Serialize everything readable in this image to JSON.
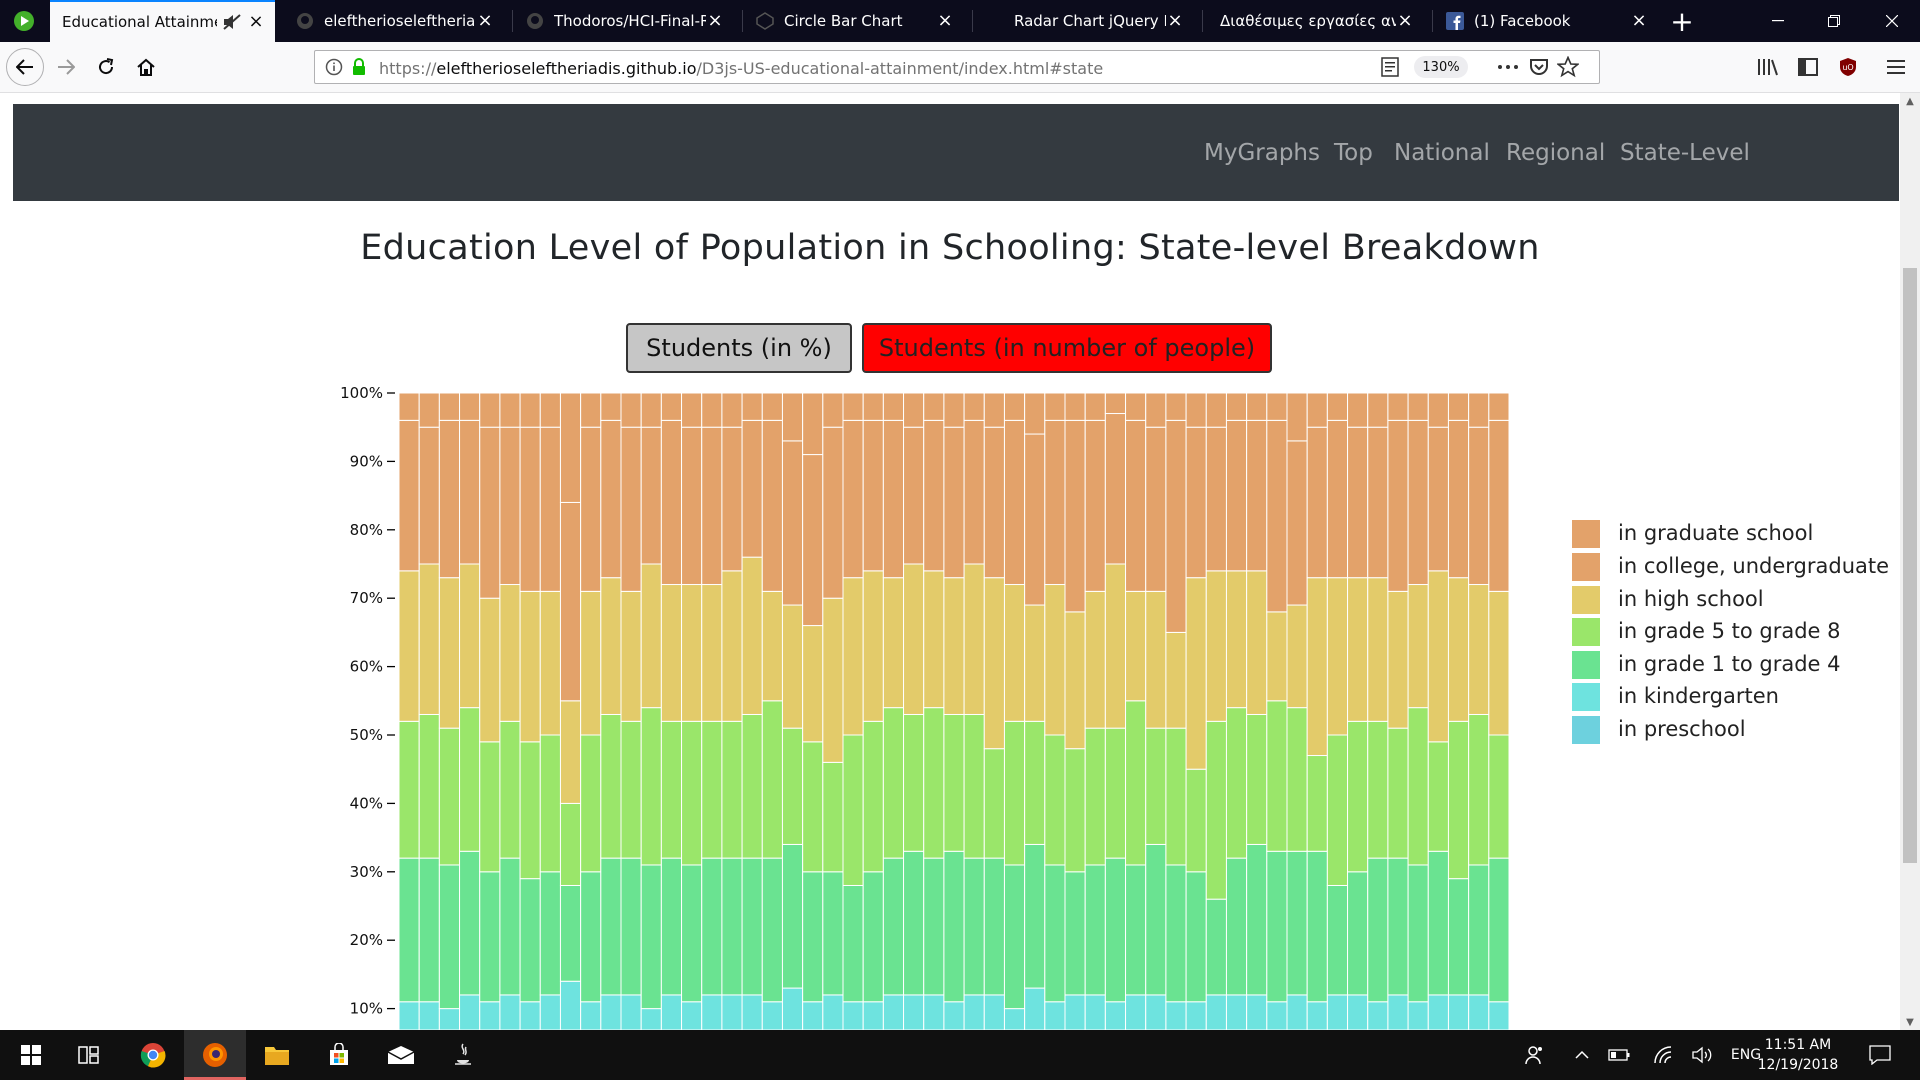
{
  "browser": {
    "tabs": [
      {
        "title": "Educational Attainment",
        "icon": "sound-muted-icon",
        "active": true
      },
      {
        "title": "eleftherioseleftheriadis",
        "icon": "github-icon",
        "active": false
      },
      {
        "title": "Thodoros/HCI-Final-Re",
        "icon": "github-icon",
        "active": false
      },
      {
        "title": "Circle Bar Chart",
        "icon": "codepen-icon",
        "active": false
      },
      {
        "title": "Radar Chart jQuery Plug",
        "icon": "page-icon",
        "active": false
      },
      {
        "title": "Διαθέσιμες εργασίες ανάπ",
        "icon": "page-icon",
        "active": false
      },
      {
        "title": "(1) Facebook",
        "icon": "facebook-icon",
        "active": false
      }
    ],
    "url_scheme": "https://",
    "url_host": "eleftherioseleftheriadis.github.io",
    "url_path": "/D3js-US-educational-attainment/index.html#state",
    "zoom": "130%"
  },
  "page": {
    "nav_links": [
      "MyGraphs",
      "Top",
      "National",
      "Regional",
      "State-Level"
    ],
    "title": "Education Level of Population in Schooling: State-level Breakdown",
    "toggle_percent": "Students (in %)",
    "toggle_count": "Students (in number of people)"
  },
  "chart_data": {
    "type": "bar",
    "stacked": true,
    "normalized": true,
    "y_ticks": [
      "100%",
      "90%",
      "80%",
      "70%",
      "60%",
      "50%",
      "40%",
      "30%",
      "20%",
      "10%"
    ],
    "ylim": [
      0,
      100
    ],
    "legend_position": "right",
    "series": [
      {
        "name": "in preschool",
        "color": "#6dd1de"
      },
      {
        "name": "in kindergarten",
        "color": "#6ee3df"
      },
      {
        "name": "in grade 1 to grade 4",
        "color": "#6ae391"
      },
      {
        "name": "in grade 5 to grade 8",
        "color": "#9ae66a"
      },
      {
        "name": "in high school",
        "color": "#e3cb6a"
      },
      {
        "name": "in college, undergraduate",
        "color": "#e3a26a"
      },
      {
        "name": "in graduate school",
        "color": "#e3a26a"
      }
    ],
    "legend_order": [
      "in graduate school",
      "in college, undergraduate",
      "in high school",
      "in grade 5 to grade 8",
      "in grade 1 to grade 4",
      "in kindergarten",
      "in preschool"
    ],
    "cumulative_top_percent": {
      "kindergarten": [
        11,
        11,
        10,
        12,
        11,
        12,
        11,
        12,
        14,
        11,
        12,
        12,
        10,
        12,
        11,
        12,
        12,
        12,
        11,
        13,
        11,
        12,
        11,
        11,
        12,
        12,
        12,
        11,
        12,
        12,
        10,
        13,
        11,
        12,
        12,
        11,
        12,
        12,
        11,
        11,
        12,
        12,
        12,
        11,
        12,
        11,
        12,
        12,
        11,
        12,
        11,
        12,
        12,
        12,
        11
      ],
      "grade_1_4": [
        32,
        32,
        31,
        33,
        30,
        32,
        29,
        30,
        28,
        30,
        32,
        32,
        31,
        32,
        31,
        32,
        32,
        32,
        32,
        34,
        30,
        30,
        28,
        30,
        32,
        33,
        32,
        33,
        32,
        32,
        31,
        34,
        31,
        30,
        31,
        32,
        31,
        34,
        31,
        30,
        26,
        32,
        34,
        33,
        33,
        33,
        28,
        30,
        32,
        32,
        31,
        33,
        29,
        31,
        32
      ],
      "grade_5_8": [
        52,
        53,
        51,
        54,
        49,
        52,
        49,
        50,
        40,
        50,
        53,
        52,
        54,
        52,
        52,
        52,
        52,
        53,
        55,
        51,
        49,
        46,
        50,
        52,
        54,
        53,
        54,
        53,
        53,
        48,
        52,
        52,
        50,
        48,
        51,
        51,
        55,
        51,
        51,
        45,
        52,
        54,
        53,
        55,
        54,
        47,
        50,
        52,
        52,
        51,
        54,
        49,
        52,
        53,
        50
      ],
      "high_school": [
        74,
        75,
        73,
        75,
        70,
        72,
        71,
        71,
        55,
        71,
        73,
        71,
        75,
        72,
        72,
        72,
        74,
        76,
        71,
        69,
        66,
        70,
        73,
        74,
        73,
        75,
        74,
        73,
        75,
        73,
        72,
        69,
        72,
        68,
        71,
        75,
        71,
        71,
        65,
        73,
        74,
        74,
        74,
        68,
        69,
        73,
        73,
        73,
        73,
        71,
        72,
        74,
        73,
        72,
        71
      ],
      "college_undergraduate": [
        96,
        95,
        96,
        96,
        95,
        95,
        95,
        95,
        84,
        95,
        96,
        95,
        95,
        96,
        95,
        95,
        95,
        96,
        96,
        93,
        91,
        95,
        96,
        96,
        96,
        95,
        96,
        95,
        96,
        95,
        96,
        94,
        96,
        96,
        96,
        97,
        96,
        95,
        96,
        95,
        95,
        96,
        96,
        96,
        93,
        95,
        96,
        95,
        95,
        96,
        96,
        95,
        96,
        95,
        96
      ],
      "graduate_school": [
        100,
        100,
        100,
        100,
        100,
        100,
        100,
        100,
        100,
        100,
        100,
        100,
        100,
        100,
        100,
        100,
        100,
        100,
        100,
        100,
        100,
        100,
        100,
        100,
        100,
        100,
        100,
        100,
        100,
        100,
        100,
        100,
        100,
        100,
        100,
        100,
        100,
        100,
        100,
        100,
        100,
        100,
        100,
        100,
        100,
        100,
        100,
        100,
        100,
        100,
        100,
        100,
        100,
        100,
        100
      ]
    }
  },
  "taskbar": {
    "language": "ENG",
    "time": "11:51 AM",
    "date": "12/19/2018"
  }
}
